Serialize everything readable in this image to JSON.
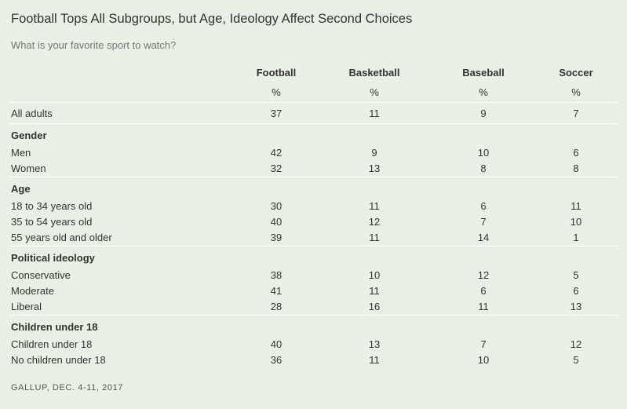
{
  "title": "Football Tops All Subgroups, but Age, Ideology Affect Second Choices",
  "subtitle": "What is your favorite sport to watch?",
  "source": "GALLUP, DEC. 4-11, 2017",
  "colors": {
    "background": "#eaf0e3",
    "rule": "#ffffff",
    "text": "#333333"
  },
  "chart_data": {
    "type": "table",
    "title": "Football Tops All Subgroups, but Age, Ideology Affect Second Choices",
    "columns": [
      "Football",
      "Basketball",
      "Baseball",
      "Soccer"
    ],
    "unit": "%",
    "overall": {
      "label": "All adults",
      "values": [
        37,
        11,
        9,
        7
      ]
    },
    "groups": [
      {
        "name": "Gender",
        "rows": [
          {
            "label": "Men",
            "values": [
              42,
              9,
              10,
              6
            ]
          },
          {
            "label": "Women",
            "values": [
              32,
              13,
              8,
              8
            ]
          }
        ]
      },
      {
        "name": "Age",
        "rows": [
          {
            "label": "18 to 34 years old",
            "values": [
              30,
              11,
              6,
              11
            ]
          },
          {
            "label": "35 to 54 years old",
            "values": [
              40,
              12,
              7,
              10
            ]
          },
          {
            "label": "55 years old and older",
            "values": [
              39,
              11,
              14,
              1
            ]
          }
        ]
      },
      {
        "name": "Political ideology",
        "rows": [
          {
            "label": "Conservative",
            "values": [
              38,
              10,
              12,
              5
            ]
          },
          {
            "label": "Moderate",
            "values": [
              41,
              11,
              6,
              6
            ]
          },
          {
            "label": "Liberal",
            "values": [
              28,
              16,
              11,
              13
            ]
          }
        ]
      },
      {
        "name": "Children under 18",
        "rows": [
          {
            "label": "Children under 18",
            "values": [
              40,
              13,
              7,
              12
            ]
          },
          {
            "label": "No children under 18",
            "values": [
              36,
              11,
              10,
              5
            ]
          }
        ]
      }
    ]
  }
}
